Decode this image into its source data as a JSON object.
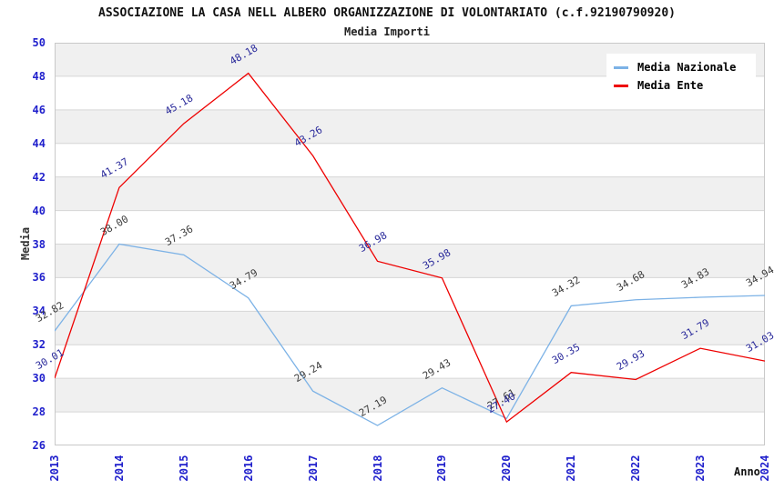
{
  "header": {
    "title": "ASSOCIAZIONE LA CASA NELL ALBERO ORGANIZZAZIONE DI VOLONTARIATO (c.f.92190790920)",
    "subtitle": "Media Importi"
  },
  "axes": {
    "y_title": "Media",
    "x_title": "Anno",
    "y_ticks": [
      50,
      48,
      46,
      44,
      42,
      40,
      38,
      36,
      34,
      32,
      30,
      28,
      26
    ],
    "tick_color": "#2020CC"
  },
  "legend": {
    "items": [
      {
        "label": "Media Nazionale",
        "color": "#7CB2E6"
      },
      {
        "label": "Media Ente",
        "color": "#EE0000"
      }
    ]
  },
  "chart_data": {
    "type": "line",
    "title": "ASSOCIAZIONE LA CASA NELL ALBERO ORGANIZZAZIONE DI VOLONTARIATO (c.f.92190790920)",
    "subtitle": "Media Importi",
    "xlabel": "Anno",
    "ylabel": "Media",
    "x": [
      2013,
      2014,
      2015,
      2016,
      2017,
      2018,
      2019,
      2020,
      2021,
      2022,
      2023,
      2024
    ],
    "ylim": [
      26,
      50
    ],
    "y_tick_step": 2,
    "grid": "horizontal",
    "band_colors": [
      "#f0f0f0",
      "#ffffff"
    ],
    "gridline_color": "#d6d6d6",
    "border_color": "#c9c9c9",
    "legend_position": "top-right",
    "series": [
      {
        "name": "Media Nazionale",
        "color": "#7CB2E6",
        "label_color": "#3C3C3C",
        "values": [
          32.82,
          38.0,
          37.36,
          34.79,
          29.24,
          27.19,
          29.43,
          27.61,
          34.32,
          34.68,
          34.83,
          34.94
        ]
      },
      {
        "name": "Media Ente",
        "color": "#EE0000",
        "label_color": "#2A2A9B",
        "values": [
          30.01,
          41.37,
          45.18,
          48.18,
          43.26,
          36.98,
          35.98,
          27.4,
          30.35,
          29.93,
          31.79,
          31.03
        ]
      }
    ]
  }
}
